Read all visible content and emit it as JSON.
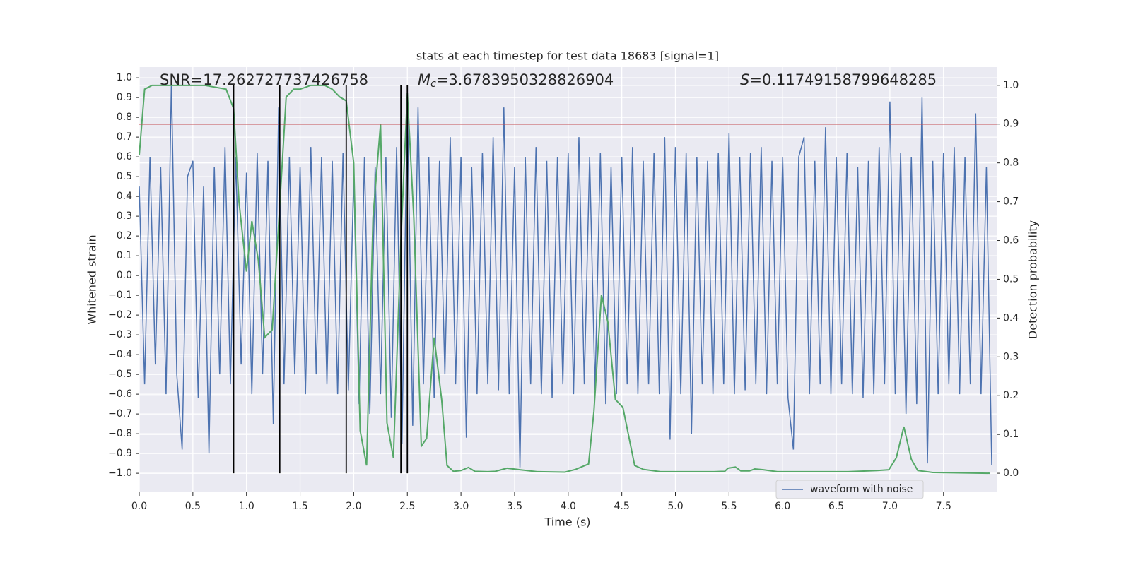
{
  "chart_data": {
    "type": "line",
    "title": "stats at each timestep for test data 18683 [signal=1]",
    "xlabel": "Time (s)",
    "ylabel": "Whitened strain",
    "y2label": "Detection probability",
    "xlim": [
      0,
      7.996
    ],
    "ylim": [
      -1.096,
      1.054
    ],
    "y2lim": [
      -0.049,
      1.047
    ],
    "xticks": [
      {
        "value": 0,
        "label": "0.0"
      },
      0.5,
      {
        "value": 1,
        "label": "1.0"
      },
      1.5,
      {
        "value": 2,
        "label": "2.0"
      },
      2.5,
      {
        "value": 3,
        "label": "3.0"
      },
      3.5,
      {
        "value": 4,
        "label": "4.0"
      },
      4.5,
      {
        "value": 5,
        "label": "5.0"
      },
      5.5,
      {
        "value": 6,
        "label": "6.0"
      },
      6.5,
      {
        "value": 7,
        "label": "7.0"
      },
      7.5
    ],
    "yticks": [
      {
        "value": 1,
        "label": "1.0"
      },
      0.9,
      0.8,
      0.7,
      0.6,
      0.5,
      0.4,
      0.3,
      0.2,
      0.1,
      {
        "value": 0,
        "label": "0.0"
      },
      {
        "value": -0.1,
        "label": "−0.1"
      },
      {
        "value": -0.2,
        "label": "−0.2"
      },
      {
        "value": -0.3,
        "label": "−0.3"
      },
      {
        "value": -0.4,
        "label": "−0.4"
      },
      {
        "value": -0.5,
        "label": "−0.5"
      },
      {
        "value": -0.6,
        "label": "−0.6"
      },
      {
        "value": -0.7,
        "label": "−0.7"
      },
      {
        "value": -0.8,
        "label": "−0.8"
      },
      {
        "value": -0.9,
        "label": "−0.9"
      },
      {
        "value": -1,
        "label": "−1.0"
      }
    ],
    "y2ticks": [
      {
        "value": 0,
        "label": "0.0"
      },
      0.1,
      0.2,
      0.3,
      0.4,
      0.5,
      0.6,
      0.7,
      0.8,
      0.9,
      {
        "value": 1,
        "label": "1.0"
      }
    ],
    "grid": true,
    "legend": "lower right",
    "series": [
      {
        "name": "waveform with noise",
        "color": "#4c72b0",
        "x": [
          0,
          0.05,
          0.1,
          0.15,
          0.2,
          0.25,
          0.3,
          0.35,
          0.4,
          0.45,
          0.5,
          0.55,
          0.6,
          0.65,
          0.7,
          0.75,
          0.8,
          0.85,
          0.9,
          0.95,
          1,
          1.05,
          1.1,
          1.15,
          1.2,
          1.25,
          1.3,
          1.35,
          1.4,
          1.45,
          1.5,
          1.55,
          1.6,
          1.65,
          1.7,
          1.75,
          1.8,
          1.85,
          1.9,
          1.95,
          2,
          2.05,
          2.1,
          2.15,
          2.2,
          2.25,
          2.3,
          2.35,
          2.4,
          2.45,
          2.5,
          2.55,
          2.6,
          2.65,
          2.7,
          2.75,
          2.8,
          2.85,
          2.9,
          2.95,
          3,
          3.05,
          3.1,
          3.15,
          3.2,
          3.25,
          3.3,
          3.35,
          3.4,
          3.45,
          3.5,
          3.55,
          3.6,
          3.65,
          3.7,
          3.75,
          3.8,
          3.85,
          3.9,
          3.95,
          4,
          4.05,
          4.1,
          4.15,
          4.2,
          4.25,
          4.3,
          4.35,
          4.4,
          4.45,
          4.5,
          4.55,
          4.6,
          4.65,
          4.7,
          4.75,
          4.8,
          4.85,
          4.9,
          4.95,
          5,
          5.05,
          5.1,
          5.15,
          5.2,
          5.25,
          5.3,
          5.35,
          5.4,
          5.45,
          5.5,
          5.55,
          5.6,
          5.65,
          5.7,
          5.75,
          5.8,
          5.85,
          5.9,
          5.95,
          6,
          6.05,
          6.1,
          6.15,
          6.2,
          6.25,
          6.3,
          6.35,
          6.4,
          6.45,
          6.5,
          6.55,
          6.6,
          6.65,
          6.7,
          6.75,
          6.8,
          6.85,
          6.9,
          6.95,
          7,
          7.05,
          7.1,
          7.15,
          7.2,
          7.25,
          7.3,
          7.35,
          7.4,
          7.45,
          7.5,
          7.55,
          7.6,
          7.65,
          7.7,
          7.75,
          7.8,
          7.85,
          7.9,
          7.95
        ],
        "values": [
          0.45,
          -0.55,
          0.6,
          -0.45,
          0.55,
          -0.6,
          0.98,
          -0.5,
          -0.88,
          0.5,
          0.58,
          -0.62,
          0.45,
          -0.9,
          0.55,
          -0.5,
          0.65,
          -0.55,
          0.6,
          -0.45,
          0.52,
          -0.6,
          0.62,
          -0.5,
          0.58,
          -0.75,
          0.85,
          -0.55,
          0.6,
          -0.5,
          0.55,
          -0.6,
          0.65,
          -0.5,
          0.6,
          -0.55,
          0.58,
          -0.6,
          0.62,
          -0.58,
          0.5,
          -0.65,
          0.6,
          -0.7,
          0.55,
          -0.6,
          0.6,
          -0.72,
          0.65,
          -0.85,
          0.9,
          -0.76,
          0.85,
          -0.55,
          0.6,
          -0.62,
          0.58,
          -0.5,
          0.7,
          -0.55,
          0.6,
          -0.82,
          0.55,
          -0.6,
          0.62,
          -0.55,
          0.7,
          -0.58,
          0.85,
          -0.6,
          0.55,
          -0.97,
          0.6,
          -0.55,
          0.65,
          -0.6,
          0.58,
          -0.62,
          0.6,
          -0.55,
          0.62,
          -0.6,
          0.7,
          -0.55,
          0.6,
          -0.58,
          0.62,
          -0.65,
          0.55,
          -0.6,
          0.6,
          -0.55,
          0.65,
          -0.6,
          0.58,
          -0.55,
          0.62,
          -0.6,
          0.7,
          -0.83,
          0.65,
          -0.6,
          0.62,
          -0.8,
          0.6,
          -0.55,
          0.58,
          -0.6,
          0.62,
          -0.55,
          0.72,
          -0.6,
          0.6,
          -0.58,
          0.62,
          -0.55,
          0.65,
          -0.6,
          0.58,
          -0.55,
          0.6,
          -0.62,
          -0.88,
          0.6,
          0.7,
          -0.6,
          0.58,
          -0.55,
          0.75,
          -0.6,
          0.6,
          -0.55,
          0.62,
          -0.6,
          0.55,
          -0.62,
          0.58,
          -0.6,
          0.65,
          -0.55,
          0.88,
          -0.6,
          0.62,
          -0.7,
          0.6,
          -0.65,
          0.9,
          -0.95,
          0.58,
          -0.6,
          0.62,
          -0.55,
          0.65,
          -0.6,
          0.6,
          -0.55,
          0.82,
          -0.6,
          0.55,
          -0.96
        ]
      },
      {
        "color": "#55a868",
        "axis": "y2",
        "x": [
          0,
          0.05,
          0.12,
          0.22,
          0.61,
          0.81,
          0.88,
          0.93,
          1,
          1.05,
          1.11,
          1.17,
          1.24,
          1.31,
          1.37,
          1.44,
          1.5,
          1.6,
          1.73,
          1.8,
          1.87,
          1.93,
          2,
          2.06,
          2.12,
          2.18,
          2.25,
          2.31,
          2.37,
          2.44,
          2.5,
          2.56,
          2.63,
          2.68,
          2.75,
          2.82,
          2.87,
          2.93,
          3,
          3.07,
          3.13,
          3.25,
          3.32,
          3.43,
          3.55,
          3.71,
          3.97,
          4.07,
          4.19,
          4.24,
          4.31,
          4.37,
          4.44,
          4.51,
          4.62,
          4.7,
          4.86,
          5.03,
          5.36,
          5.46,
          5.49,
          5.56,
          5.61,
          5.69,
          5.74,
          5.82,
          5.95,
          6.61,
          6.88,
          6.99,
          7.06,
          7.13,
          7.2,
          7.26,
          7.4,
          7.93
        ],
        "values": [
          0.82,
          0.99,
          1,
          1,
          1,
          0.99,
          0.94,
          0.7,
          0.52,
          0.65,
          0.55,
          0.35,
          0.37,
          0.69,
          0.97,
          0.99,
          0.99,
          1,
          1,
          0.99,
          0.97,
          0.96,
          0.8,
          0.11,
          0.02,
          0.66,
          0.9,
          0.13,
          0.04,
          0.6,
          0.98,
          0.66,
          0.07,
          0.09,
          0.35,
          0.19,
          0.02,
          0.005,
          0.007,
          0.015,
          0.005,
          0.004,
          0.005,
          0.013,
          0.009,
          0.004,
          0.003,
          0.01,
          0.024,
          0.16,
          0.46,
          0.39,
          0.19,
          0.17,
          0.02,
          0.01,
          0.004,
          0.004,
          0.004,
          0.005,
          0.013,
          0.016,
          0.006,
          0.006,
          0.011,
          0.009,
          0.004,
          0.004,
          0.007,
          0.009,
          0.04,
          0.12,
          0.036,
          0.007,
          0.002,
          0
        ]
      }
    ],
    "vlines": {
      "x": [
        0.88,
        1.31,
        1.93,
        2.44,
        2.5
      ],
      "y2range": [
        0,
        1
      ],
      "color": "#000000"
    },
    "hline": {
      "value": 0.9,
      "axis": "y2",
      "color": "#c44e52"
    },
    "annotations": {
      "snr": "SNR=17.262727737426758",
      "mc_symbol": "M",
      "mc_sub": "c",
      "mc_value": "=3.6783950328826904",
      "s_symbol": "S",
      "s_value": "=0.11749158799648285"
    }
  }
}
